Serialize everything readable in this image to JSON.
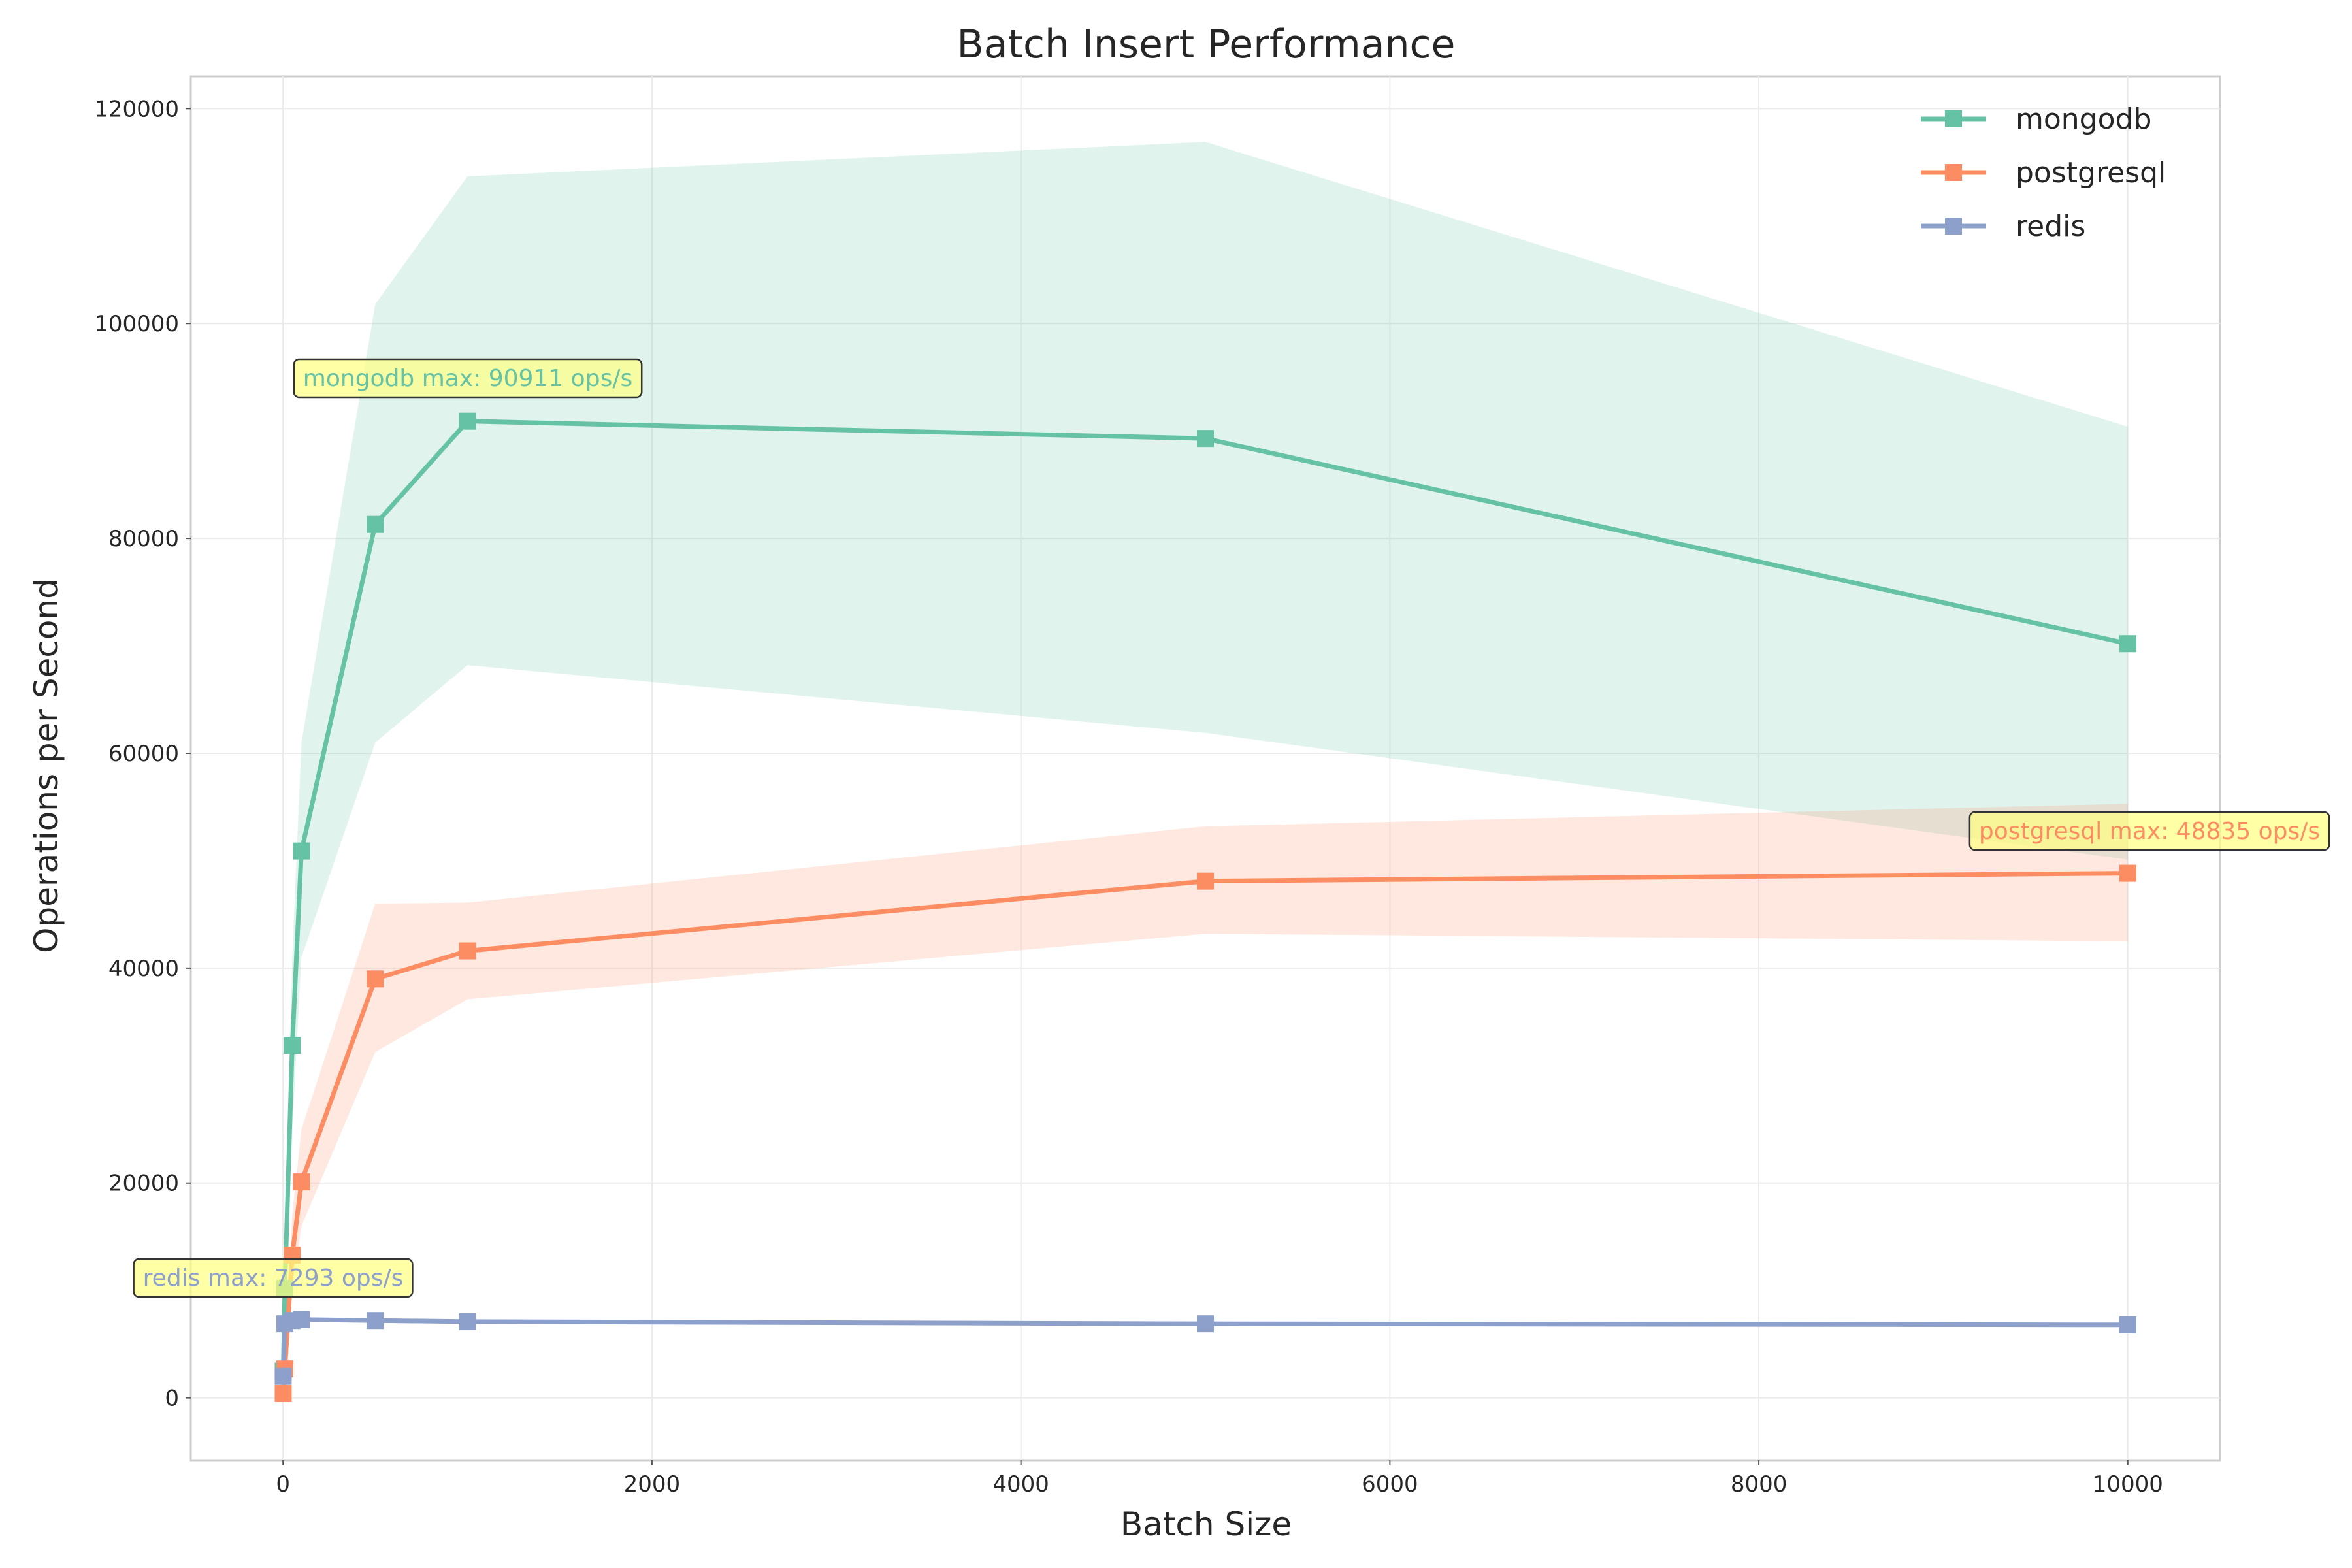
{
  "chart_data": {
    "type": "line",
    "title": "Batch Insert Performance",
    "xlabel": "Batch Size",
    "ylabel": "Operations per Second",
    "xlim": [
      -500,
      10500
    ],
    "ylim": [
      -5800,
      123000
    ],
    "x_ticks": [
      0,
      2000,
      4000,
      6000,
      8000,
      10000
    ],
    "y_ticks": [
      0,
      20000,
      40000,
      60000,
      80000,
      100000,
      120000
    ],
    "grid": true,
    "legend_position": "top-right",
    "x": [
      1,
      10,
      50,
      100,
      500,
      1000,
      5000,
      10000
    ],
    "series": [
      {
        "name": "mongodb",
        "color": "#66c2a5",
        "marker": "square",
        "values": [
          2500,
          10200,
          32800,
          50900,
          81300,
          90911,
          89300,
          70200
        ],
        "band_upper": [
          3200,
          13000,
          41000,
          61000,
          101800,
          113700,
          116900,
          90400
        ],
        "band_lower": [
          1800,
          7500,
          25000,
          41000,
          61000,
          68200,
          61900,
          50100
        ]
      },
      {
        "name": "postgresql",
        "color": "#fc8d62",
        "marker": "square",
        "values": [
          400,
          2700,
          13300,
          20100,
          39000,
          41600,
          48100,
          48835
        ],
        "band_upper": [
          600,
          3600,
          17000,
          25000,
          46000,
          46100,
          53200,
          55300
        ],
        "band_lower": [
          200,
          1900,
          10000,
          16000,
          32200,
          37100,
          43200,
          42500
        ]
      },
      {
        "name": "redis",
        "color": "#8da0cb",
        "marker": "square",
        "values": [
          2000,
          6900,
          7200,
          7293,
          7200,
          7100,
          6900,
          6800
        ],
        "band_upper": [
          2200,
          7100,
          7400,
          7500,
          7400,
          7300,
          7100,
          7000
        ],
        "band_lower": [
          1800,
          6700,
          7000,
          7100,
          7000,
          6900,
          6700,
          6600
        ]
      }
    ],
    "annotations": [
      {
        "text": "mongodb max: 90911 ops/s",
        "series": "mongodb",
        "x": 1000,
        "y": 90911,
        "color": "#66c2a5"
      },
      {
        "text": "postgresql max: 48835 ops/s",
        "series": "postgresql",
        "x": 10000,
        "y": 48835,
        "color": "#fc8d62"
      },
      {
        "text": "redis max: 7293 ops/s",
        "series": "redis",
        "x": 100,
        "y": 7293,
        "color": "#8da0cb"
      }
    ],
    "annotation_box_color": "#ffff80"
  }
}
